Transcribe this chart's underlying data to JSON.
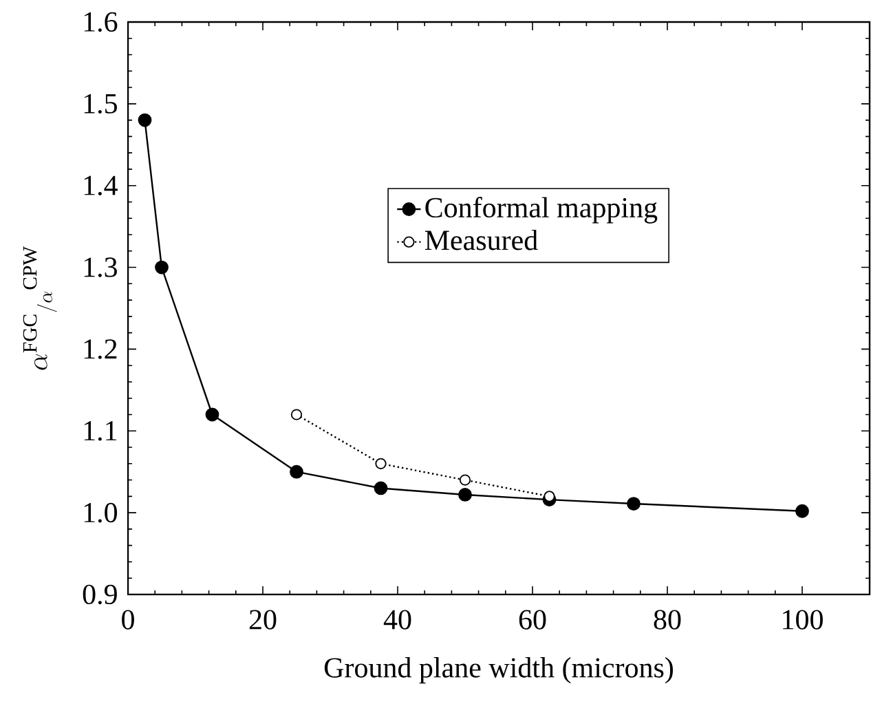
{
  "chart_data": {
    "type": "line",
    "xlabel": "Ground plane width (microns)",
    "ylabel": "\\alpha^{\\mathrm{FGC}}{}_{/\\alpha}{}^{\\mathrm{CPW}}",
    "xlim": [
      0,
      110
    ],
    "xticks": [
      0,
      20,
      40,
      60,
      80,
      100
    ],
    "ylim": [
      0.9,
      1.6
    ],
    "yticks": [
      {
        "value": 0.9,
        "label": "0.9"
      },
      {
        "value": 1.0,
        "label": "1.0"
      },
      {
        "value": 1.1,
        "label": "1.1"
      },
      {
        "value": 1.2,
        "label": "1.2"
      },
      {
        "value": 1.3,
        "label": "1.3"
      },
      {
        "value": 1.4,
        "label": "1.4"
      },
      {
        "value": 1.5,
        "label": "1.5"
      },
      {
        "value": 1.6,
        "label": "1.6"
      }
    ],
    "legend": "right",
    "marker": "circle",
    "series": [
      {
        "name": "Conformal mapping",
        "color": "#000000",
        "line_style": "solid",
        "x": [
          2.5,
          5,
          12.5,
          25,
          37.5,
          50,
          62.5,
          75,
          100
        ],
        "values": [
          1.48,
          1.3,
          1.12,
          1.05,
          1.03,
          1.022,
          1.016,
          1.011,
          1.002
        ]
      },
      {
        "name": "Measured",
        "color": "#000000",
        "line_style": "dotted",
        "x": [
          25,
          37.5,
          50,
          62.5
        ],
        "values": [
          1.12,
          1.06,
          1.04,
          1.02
        ]
      }
    ]
  }
}
